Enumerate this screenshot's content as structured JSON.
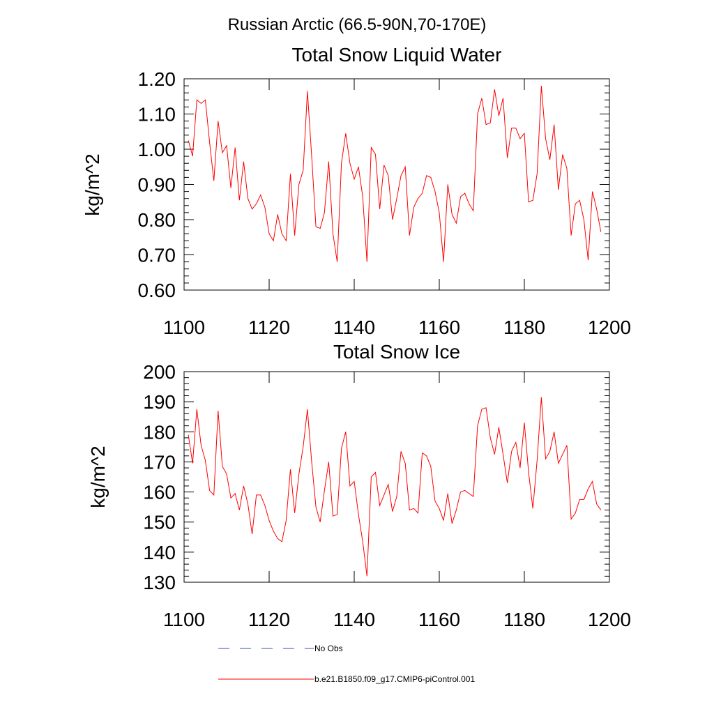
{
  "figure": {
    "title": "Russian Arctic (66.5-90N,70-170E)"
  },
  "colors": {
    "series": "#ff0000",
    "no_obs": "#3b4fa8",
    "axis": "#000000"
  },
  "legend": {
    "position": "bottom-left",
    "items": [
      {
        "label": "No Obs",
        "style": "dashed",
        "color": "#3b4fa8"
      },
      {
        "label": "b.e21.B1850.f09_g17.CMIP6-piControl.001",
        "style": "solid",
        "color": "#ff0000"
      }
    ]
  },
  "chart_data": [
    {
      "type": "line",
      "title": "Total Snow Liquid Water",
      "xlabel": "",
      "ylabel": "kg/m^2",
      "xlim": [
        1100,
        1200
      ],
      "ylim": [
        0.6,
        1.2
      ],
      "xticks": [
        1100,
        1120,
        1140,
        1160,
        1180,
        1200
      ],
      "xtick_labels": [
        "1100",
        "1120",
        "1140",
        "1160",
        "1180",
        "1200"
      ],
      "yticks": [
        0.6,
        0.7,
        0.8,
        0.9,
        1.0,
        1.1,
        1.2
      ],
      "ytick_labels": [
        "0.60",
        "0.70",
        "0.80",
        "0.90",
        "1.00",
        "1.10",
        "1.20"
      ],
      "grid": false,
      "series": [
        {
          "name": "b.e21.B1850.f09_g17.CMIP6-piControl.001",
          "x_start": 1101,
          "x_step": 1,
          "values": [
            1.025,
            0.98,
            1.14,
            1.13,
            1.14,
            1.02,
            0.91,
            1.08,
            0.99,
            1.01,
            0.89,
            1.005,
            0.855,
            0.965,
            0.86,
            0.83,
            0.845,
            0.87,
            0.835,
            0.76,
            0.74,
            0.815,
            0.76,
            0.74,
            0.93,
            0.755,
            0.9,
            0.94,
            1.165,
            0.98,
            0.78,
            0.775,
            0.82,
            0.965,
            0.76,
            0.68,
            0.96,
            1.045,
            0.96,
            0.915,
            0.95,
            0.865,
            0.68,
            1.005,
            0.985,
            0.83,
            0.955,
            0.925,
            0.8,
            0.86,
            0.925,
            0.95,
            0.755,
            0.835,
            0.86,
            0.875,
            0.925,
            0.92,
            0.88,
            0.82,
            0.68,
            0.9,
            0.815,
            0.79,
            0.865,
            0.875,
            0.845,
            0.825,
            1.1,
            1.145,
            1.07,
            1.075,
            1.17,
            1.095,
            1.145,
            0.975,
            1.06,
            1.06,
            1.03,
            1.045,
            0.85,
            0.855,
            0.93,
            1.18,
            1.03,
            0.97,
            1.07,
            0.885,
            0.985,
            0.945,
            0.755,
            0.845,
            0.855,
            0.8,
            0.685,
            0.88,
            0.83,
            0.765
          ]
        }
      ]
    },
    {
      "type": "line",
      "title": "Total Snow Ice",
      "xlabel": "",
      "ylabel": "kg/m^2",
      "xlim": [
        1100,
        1200
      ],
      "ylim": [
        130,
        200
      ],
      "xticks": [
        1100,
        1120,
        1140,
        1160,
        1180,
        1200
      ],
      "xtick_labels": [
        "1100",
        "1120",
        "1140",
        "1160",
        "1180",
        "1200"
      ],
      "yticks": [
        130,
        140,
        150,
        160,
        170,
        180,
        190,
        200
      ],
      "ytick_labels": [
        "130",
        "140",
        "150",
        "160",
        "170",
        "180",
        "190",
        "200"
      ],
      "grid": false,
      "series": [
        {
          "name": "b.e21.B1850.f09_g17.CMIP6-piControl.001",
          "x_start": 1101,
          "x_step": 1,
          "values": [
            179,
            169.5,
            187.5,
            175.5,
            170.5,
            160.5,
            159,
            187,
            168.5,
            166,
            158,
            159.5,
            154,
            162,
            156,
            146,
            159,
            159,
            155.5,
            150.5,
            147,
            144.5,
            143.5,
            150.5,
            167.5,
            153,
            166,
            175,
            187.5,
            170,
            155,
            150,
            160.5,
            170,
            152,
            152.5,
            174.5,
            180,
            162,
            163.5,
            152.5,
            143.5,
            132,
            165,
            166.5,
            155.5,
            159,
            162.5,
            153.5,
            158.5,
            173.5,
            169.5,
            154,
            154.5,
            153,
            173,
            172,
            168.5,
            157,
            154.5,
            150.5,
            159.5,
            149.5,
            154,
            160,
            160.5,
            159.5,
            158.5,
            182,
            187.5,
            188,
            178,
            172.5,
            181.5,
            172.5,
            163,
            173.5,
            176.5,
            168,
            183,
            166.5,
            154.5,
            170.5,
            191.5,
            171,
            173.5,
            180,
            169.5,
            172.5,
            175.5,
            151,
            153,
            157.5,
            157.5,
            161,
            163.5,
            156,
            154
          ]
        }
      ]
    }
  ]
}
